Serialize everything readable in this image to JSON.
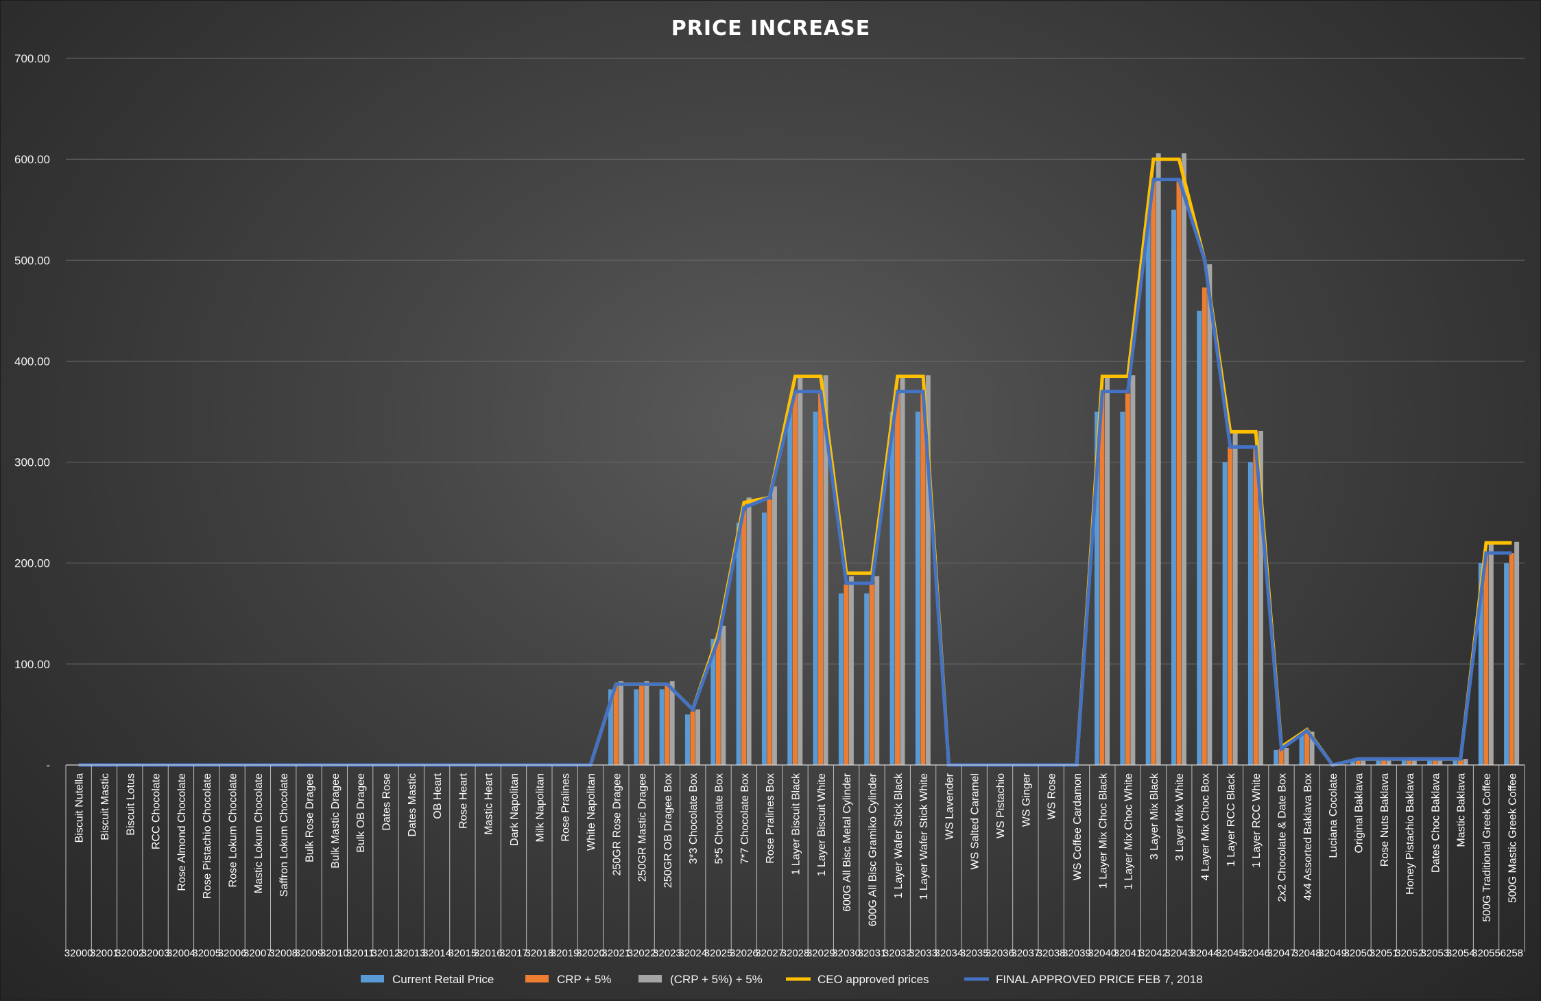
{
  "chart_data": {
    "type": "bar",
    "title": "PRICE INCREASE",
    "xlabel": "",
    "ylabel": "",
    "ylim": [
      0,
      700
    ],
    "yticks": [
      "-",
      "100.00",
      "200.00",
      "300.00",
      "400.00",
      "500.00",
      "600.00",
      "700.00"
    ],
    "grid": true,
    "legend_position": "bottom",
    "categories": [
      "Biscuit Nutella",
      "Biscuit Mastic",
      "Biscuit Lotus",
      "RCC Chocolate",
      "Rose Almond Chocolate",
      "Rose Pistachio Chocolate",
      "Rose Lokum Chocolate",
      "Mastic Lokum Chocolate",
      "Saffron Lokum Chocolate",
      "Bulk Rose Dragee",
      "Bulk Mastic Dragee",
      "Bulk OB Dragee",
      "Dates Rose",
      "Dates Mastic",
      "OB Heart",
      "Rose Heart",
      "Mastic Heart",
      "Dark Napolitan",
      "Milk Napolitan",
      "Rose Pralines",
      "White Napolitan",
      "250GR Rose Dragee",
      "250GR Mastic Dragee",
      "250GR OB Dragee Box",
      "3*3 Chocolate Box",
      "5*5 Chocolate Box",
      "7*7 Chocolate Box",
      "Rose Pralines Box",
      "1 Layer Biscuit Black",
      "1 Layer Biscuit White",
      "600G All Bisc Metal Cylinder",
      "600G All Bisc Gramiko Cylinder",
      "1 Layer Wafer Stick Black",
      "1 Layer Wafer Stick White",
      "WS Lavender",
      "WS Salted Caramel",
      "WS Pistachio",
      "WS Ginger",
      "WS Rose",
      "WS Coffee Cardamon",
      "1 Layer Mix Choc Black",
      "1 Layer Mix Choc White",
      "3 Layer Mix Black",
      "3 Layer Mix White",
      "4 Layer Mix Choc Box",
      "1 Layer RCC Black",
      "1 Layer RCC White",
      "2x2 Chocolate & Date Box",
      "4x4 Assorted Baklava Box",
      "Luciana Cocolate",
      "Original Baklava",
      "Rose Nuts Baklava",
      "Honey Pistachio Baklava",
      "Dates Choc Baklava",
      "Mastic Baklava",
      "500G Traditional Greek Coffee",
      "500G Mastic Greek Coffee"
    ],
    "codes": [
      "32000",
      "32001",
      "32002",
      "32003",
      "32004",
      "32005",
      "32006",
      "32007",
      "32008",
      "32009",
      "32010",
      "32011",
      "32012",
      "32013",
      "32014",
      "32015",
      "32016",
      "32017",
      "32018",
      "32019",
      "32020",
      "32021",
      "32022",
      "32023",
      "32024",
      "32025",
      "32026",
      "32027",
      "32028",
      "32029",
      "32030",
      "32031",
      "32032",
      "32033",
      "32034",
      "32035",
      "32036",
      "32037",
      "32038",
      "32039",
      "32040",
      "32041",
      "32042",
      "32043",
      "32044",
      "32045",
      "32046",
      "32047",
      "32048",
      "32049",
      "32050",
      "32051",
      "32052",
      "32053",
      "32054",
      "32055",
      "6258"
    ],
    "series": [
      {
        "name": "Current Retail Price",
        "kind": "bar",
        "color": "#5b9bd5",
        "values": [
          0,
          0,
          0,
          0,
          0,
          0,
          0,
          0,
          0,
          0,
          0,
          0,
          0,
          0,
          0,
          0,
          0,
          0,
          0,
          0,
          0,
          75,
          75,
          75,
          50,
          125,
          240,
          250,
          350,
          350,
          170,
          170,
          350,
          350,
          0,
          0,
          0,
          0,
          0,
          0,
          350,
          350,
          550,
          550,
          450,
          300,
          300,
          15,
          30,
          0,
          5,
          5,
          5,
          5,
          5,
          200,
          200
        ]
      },
      {
        "name": "CRP + 5%",
        "kind": "bar",
        "color": "#ed7d31",
        "values": [
          0,
          0,
          0,
          0,
          0,
          0,
          0,
          0,
          0,
          0,
          0,
          0,
          0,
          0,
          0,
          0,
          0,
          0,
          0,
          0,
          0,
          79,
          79,
          79,
          53,
          131,
          252,
          263,
          368,
          368,
          179,
          179,
          368,
          368,
          0,
          0,
          0,
          0,
          0,
          0,
          368,
          368,
          578,
          578,
          473,
          315,
          315,
          16,
          32,
          0,
          5,
          5,
          5,
          5,
          5,
          210,
          210
        ]
      },
      {
        "name": "(CRP + 5%) + 5%",
        "kind": "bar",
        "color": "#a5a5a5",
        "values": [
          0,
          0,
          0,
          0,
          0,
          0,
          0,
          0,
          0,
          0,
          0,
          0,
          0,
          0,
          0,
          0,
          0,
          0,
          0,
          0,
          0,
          83,
          83,
          83,
          55,
          138,
          265,
          276,
          386,
          386,
          187,
          187,
          386,
          386,
          0,
          0,
          0,
          0,
          0,
          0,
          386,
          386,
          606,
          606,
          496,
          331,
          331,
          17,
          33,
          0,
          6,
          6,
          6,
          6,
          6,
          221,
          221
        ]
      },
      {
        "name": "CEO approved prices",
        "kind": "line",
        "color": "#ffc000",
        "values": [
          0,
          0,
          0,
          0,
          0,
          0,
          0,
          0,
          0,
          0,
          0,
          0,
          0,
          0,
          0,
          0,
          0,
          0,
          0,
          0,
          0,
          80,
          80,
          80,
          55,
          130,
          260,
          265,
          385,
          385,
          190,
          190,
          385,
          385,
          0,
          0,
          0,
          0,
          0,
          0,
          385,
          385,
          600,
          600,
          500,
          330,
          330,
          18,
          35,
          0,
          6,
          6,
          6,
          6,
          6,
          220,
          220
        ]
      },
      {
        "name": "FINAL APPROVED PRICE FEB 7, 2018",
        "kind": "line",
        "color": "#4472c4",
        "values": [
          0,
          0,
          0,
          0,
          0,
          0,
          0,
          0,
          0,
          0,
          0,
          0,
          0,
          0,
          0,
          0,
          0,
          0,
          0,
          0,
          0,
          80,
          80,
          80,
          55,
          125,
          255,
          265,
          370,
          370,
          180,
          180,
          370,
          370,
          0,
          0,
          0,
          0,
          0,
          0,
          370,
          370,
          580,
          580,
          500,
          315,
          315,
          16,
          34,
          0,
          6,
          6,
          6,
          6,
          6,
          210,
          210
        ]
      }
    ]
  }
}
